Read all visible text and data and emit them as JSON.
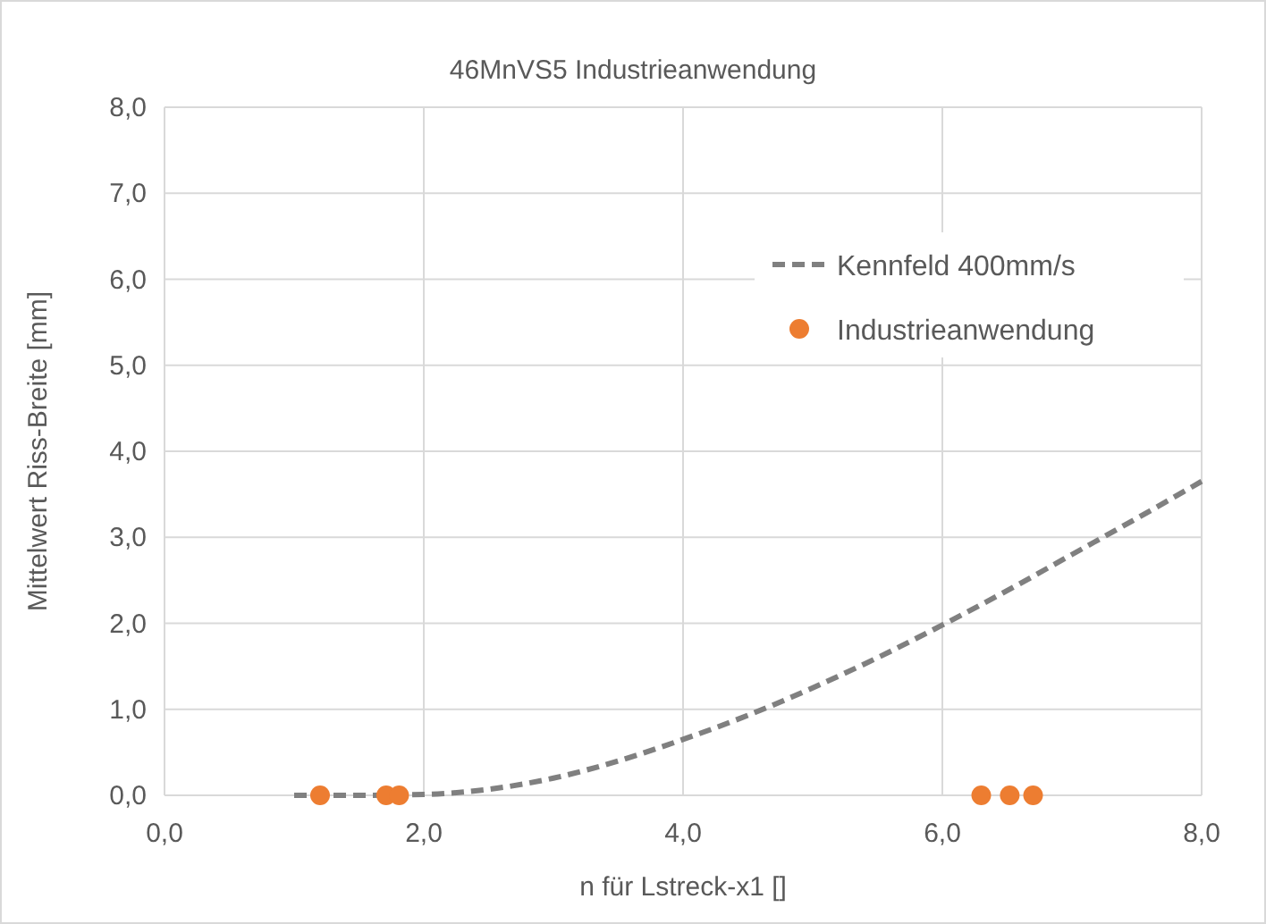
{
  "chart_data": {
    "type": "scatter",
    "title": "46MnVS5 Industrieanwendung",
    "xlabel": "n für Lstreck-x1 []",
    "ylabel": "Mittelwert Riss-Breite [mm]",
    "xlim": [
      0,
      8
    ],
    "ylim": [
      0,
      8
    ],
    "xticks": [
      {
        "value": 0,
        "label": "0,0"
      },
      {
        "value": 2,
        "label": "2,0"
      },
      {
        "value": 4,
        "label": "4,0"
      },
      {
        "value": 6,
        "label": "6,0"
      },
      {
        "value": 8,
        "label": "8,0"
      }
    ],
    "yticks": [
      {
        "value": 0,
        "label": "0,0"
      },
      {
        "value": 1,
        "label": "1,0"
      },
      {
        "value": 2,
        "label": "2,0"
      },
      {
        "value": 3,
        "label": "3,0"
      },
      {
        "value": 4,
        "label": "4,0"
      },
      {
        "value": 5,
        "label": "5,0"
      },
      {
        "value": 6,
        "label": "6,0"
      },
      {
        "value": 7,
        "label": "7,0"
      },
      {
        "value": 8,
        "label": "8,0"
      }
    ],
    "grid": true,
    "legend": "top right",
    "series": [
      {
        "name": "Kennfeld 400mm/s",
        "type": "line",
        "line_style": "dashed",
        "color": "#808080",
        "x": [
          1.0,
          1.5,
          2.0,
          2.5,
          3.0,
          3.5,
          4.0,
          4.5,
          5.0,
          5.5,
          6.0,
          6.5,
          7.0,
          7.5,
          8.0
        ],
        "values": [
          0,
          0,
          0.01,
          0.07,
          0.2,
          0.4,
          0.65,
          0.93,
          1.25,
          1.6,
          1.98,
          2.38,
          2.8,
          3.22,
          3.65
        ]
      },
      {
        "name": "Industrieanwendung",
        "marker": "circle",
        "color": "#ed7d31",
        "x": [
          1.2,
          1.71,
          1.81,
          6.3,
          6.52,
          6.7
        ],
        "values": [
          0,
          0,
          0,
          0,
          0,
          0
        ]
      }
    ]
  }
}
